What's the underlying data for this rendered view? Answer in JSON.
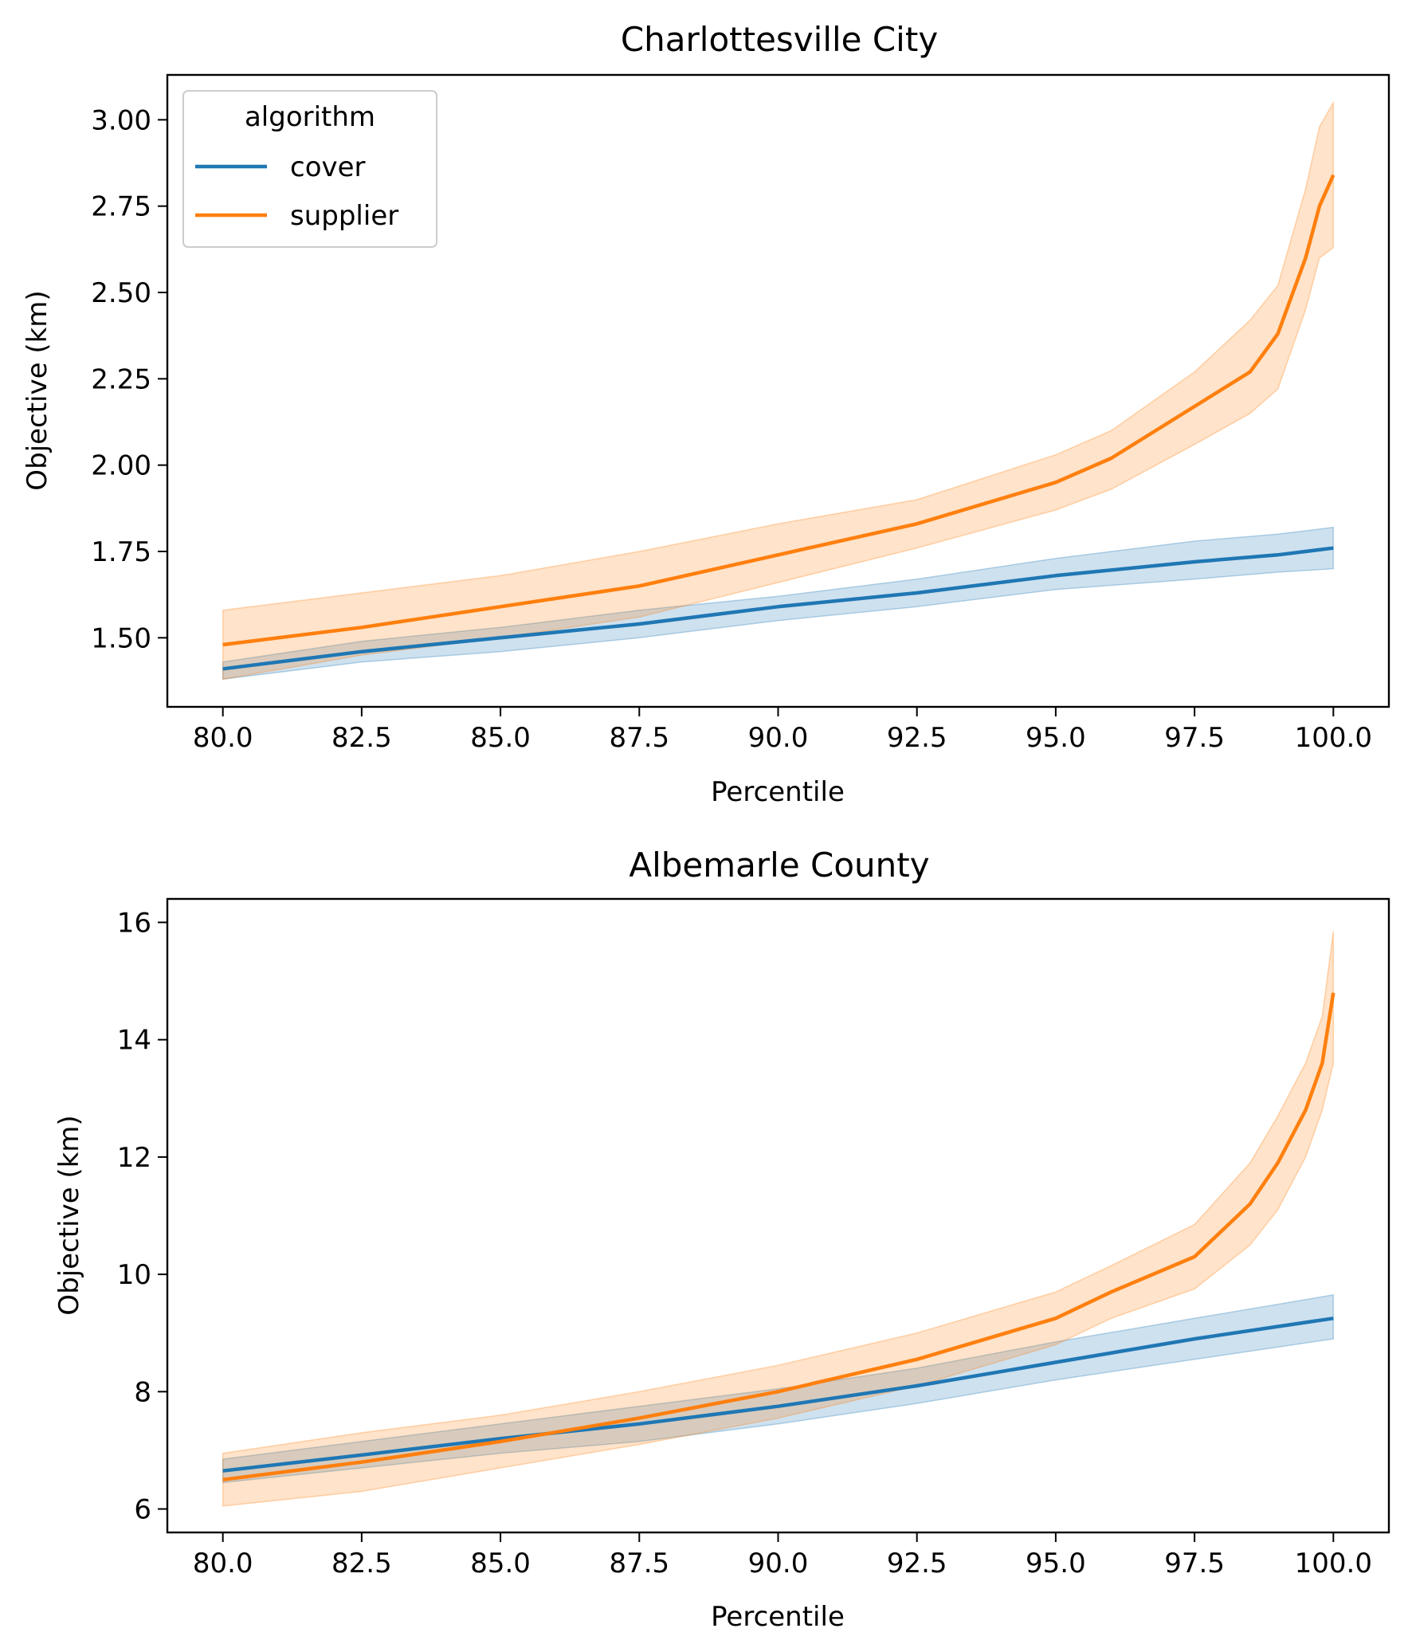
{
  "legend": {
    "title": "algorithm",
    "entries": [
      {
        "name": "cover",
        "color": "#1f77b4"
      },
      {
        "name": "supplier",
        "color": "#ff7f0e"
      }
    ]
  },
  "chart_data": [
    {
      "type": "line",
      "title": "Charlottesville City",
      "xlabel": "Percentile",
      "ylabel": "Objective (km)",
      "xlim": [
        79.0,
        101.0
      ],
      "ylim": [
        1.3,
        3.13
      ],
      "xticks": [
        80,
        82.5,
        85,
        87.5,
        90,
        92.5,
        95,
        97.5,
        100
      ],
      "xtick_labels": [
        "80.0",
        "82.5",
        "85.0",
        "87.5",
        "90.0",
        "92.5",
        "95.0",
        "97.5",
        "100.0"
      ],
      "yticks": [
        1.5,
        1.75,
        2.0,
        2.25,
        2.5,
        2.75,
        3.0
      ],
      "ytick_labels": [
        "1.50",
        "1.75",
        "2.00",
        "2.25",
        "2.50",
        "2.75",
        "3.00"
      ],
      "legend_position": "top-left",
      "grid": false,
      "series": [
        {
          "name": "cover",
          "color": "#1f77b4",
          "x": [
            80,
            82.5,
            85,
            87.5,
            90,
            92.5,
            95,
            97.5,
            99,
            100
          ],
          "y": [
            1.41,
            1.46,
            1.5,
            1.54,
            1.59,
            1.63,
            1.68,
            1.72,
            1.74,
            1.76
          ],
          "lower": [
            1.38,
            1.43,
            1.46,
            1.5,
            1.55,
            1.59,
            1.64,
            1.67,
            1.69,
            1.7
          ],
          "upper": [
            1.43,
            1.49,
            1.53,
            1.58,
            1.62,
            1.67,
            1.73,
            1.78,
            1.8,
            1.82
          ]
        },
        {
          "name": "supplier",
          "color": "#ff7f0e",
          "x": [
            80,
            82.5,
            85,
            87.5,
            90,
            92.5,
            95,
            96,
            97.5,
            98.5,
            99,
            99.5,
            99.75,
            100
          ],
          "y": [
            1.48,
            1.53,
            1.59,
            1.65,
            1.74,
            1.83,
            1.95,
            2.02,
            2.17,
            2.27,
            2.38,
            2.6,
            2.75,
            2.84
          ],
          "lower": [
            1.38,
            1.45,
            1.5,
            1.56,
            1.66,
            1.76,
            1.87,
            1.93,
            2.06,
            2.15,
            2.22,
            2.45,
            2.6,
            2.63
          ],
          "upper": [
            1.58,
            1.63,
            1.68,
            1.75,
            1.83,
            1.9,
            2.03,
            2.1,
            2.27,
            2.42,
            2.52,
            2.8,
            2.98,
            3.05
          ]
        }
      ]
    },
    {
      "type": "line",
      "title": "Albemarle County",
      "xlabel": "Percentile",
      "ylabel": "Objective (km)",
      "xlim": [
        79.0,
        101.0
      ],
      "ylim": [
        5.6,
        16.4
      ],
      "xticks": [
        80,
        82.5,
        85,
        87.5,
        90,
        92.5,
        95,
        97.5,
        100
      ],
      "xtick_labels": [
        "80.0",
        "82.5",
        "85.0",
        "87.5",
        "90.0",
        "92.5",
        "95.0",
        "97.5",
        "100.0"
      ],
      "yticks": [
        6,
        8,
        10,
        12,
        14,
        16
      ],
      "ytick_labels": [
        "6",
        "8",
        "10",
        "12",
        "14",
        "16"
      ],
      "grid": false,
      "series": [
        {
          "name": "cover",
          "color": "#1f77b4",
          "x": [
            80,
            82.5,
            85,
            87.5,
            90,
            92.5,
            95,
            97.5,
            100
          ],
          "y": [
            6.65,
            6.92,
            7.2,
            7.45,
            7.75,
            8.1,
            8.5,
            8.9,
            9.25
          ],
          "lower": [
            6.45,
            6.7,
            6.95,
            7.15,
            7.45,
            7.8,
            8.2,
            8.55,
            8.9
          ],
          "upper": [
            6.85,
            7.15,
            7.45,
            7.75,
            8.05,
            8.4,
            8.85,
            9.25,
            9.65
          ]
        },
        {
          "name": "supplier",
          "color": "#ff7f0e",
          "x": [
            80,
            82.5,
            85,
            87.5,
            90,
            92.5,
            95,
            96,
            97.5,
            98.5,
            99,
            99.5,
            99.8,
            100
          ],
          "y": [
            6.5,
            6.8,
            7.15,
            7.55,
            8.0,
            8.55,
            9.25,
            9.7,
            10.3,
            11.2,
            11.9,
            12.8,
            13.6,
            14.8
          ],
          "lower": [
            6.05,
            6.3,
            6.7,
            7.1,
            7.55,
            8.1,
            8.8,
            9.25,
            9.75,
            10.5,
            11.1,
            12.0,
            12.8,
            13.6
          ],
          "upper": [
            6.95,
            7.3,
            7.6,
            8.0,
            8.45,
            9.0,
            9.7,
            10.15,
            10.85,
            11.9,
            12.7,
            13.6,
            14.4,
            15.85
          ]
        }
      ]
    }
  ]
}
